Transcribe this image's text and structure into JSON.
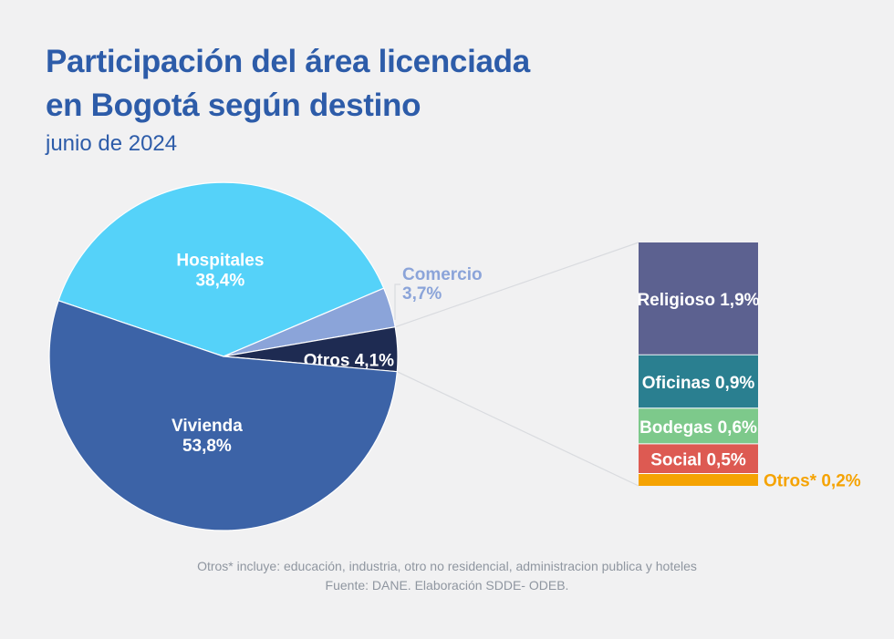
{
  "header": {
    "title_line1": "Participación del área licenciada",
    "title_line2": "en Bogotá según destino",
    "subtitle": "junio de 2024"
  },
  "chart_data": {
    "type": "pie",
    "title": "Participación del área licenciada en Bogotá según destino",
    "subtitle": "junio de 2024",
    "unit": "percent",
    "slices": [
      {
        "label": "Hospitales",
        "value": 38.4,
        "pct_display": "38,4%",
        "color": "#55d2f9",
        "label_color": "#ffffff",
        "label_outside": false
      },
      {
        "label": "Comercio",
        "value": 3.7,
        "pct_display": "3,7%",
        "color": "#8ba4d9",
        "label_color": "#8ba4d9",
        "label_outside": true
      },
      {
        "label": "Otros",
        "value": 4.1,
        "pct_display": "4,1%",
        "color": "#1e2b52",
        "label_color": "#ffffff",
        "label_outside": false
      },
      {
        "label": "Vivienda",
        "value": 53.8,
        "pct_display": "53,8%",
        "color": "#3c63a7",
        "label_color": "#ffffff",
        "label_outside": false
      }
    ],
    "breakdown": {
      "of": "Otros",
      "type": "bar",
      "segments": [
        {
          "label": "Religioso",
          "value": 1.9,
          "pct_display": "1,9%",
          "color": "#5c6190",
          "label_color": "#ffffff",
          "label_outside": false
        },
        {
          "label": "Oficinas",
          "value": 0.9,
          "pct_display": "0,9%",
          "color": "#2a7f90",
          "label_color": "#ffffff",
          "label_outside": false
        },
        {
          "label": "Bodegas",
          "value": 0.6,
          "pct_display": "0,6%",
          "color": "#7dc98b",
          "label_color": "#ffffff",
          "label_outside": false
        },
        {
          "label": "Social",
          "value": 0.5,
          "pct_display": "0,5%",
          "color": "#dd5a52",
          "label_color": "#ffffff",
          "label_outside": false
        },
        {
          "label": "Otros*",
          "value": 0.2,
          "pct_display": "0,2%",
          "color": "#f5a303",
          "label_color": "#f5a303",
          "label_outside": true
        }
      ]
    },
    "colors": {
      "background": "#f1f1f2",
      "title": "#2d5ca9",
      "footnote": "#8f96a0",
      "connector": "#d9dbdf"
    }
  },
  "footer": {
    "note": "Otros* incluye: educación, industria, otro no residencial, administracion publica y hoteles",
    "source": "Fuente: DANE. Elaboración SDDE- ODEB."
  }
}
